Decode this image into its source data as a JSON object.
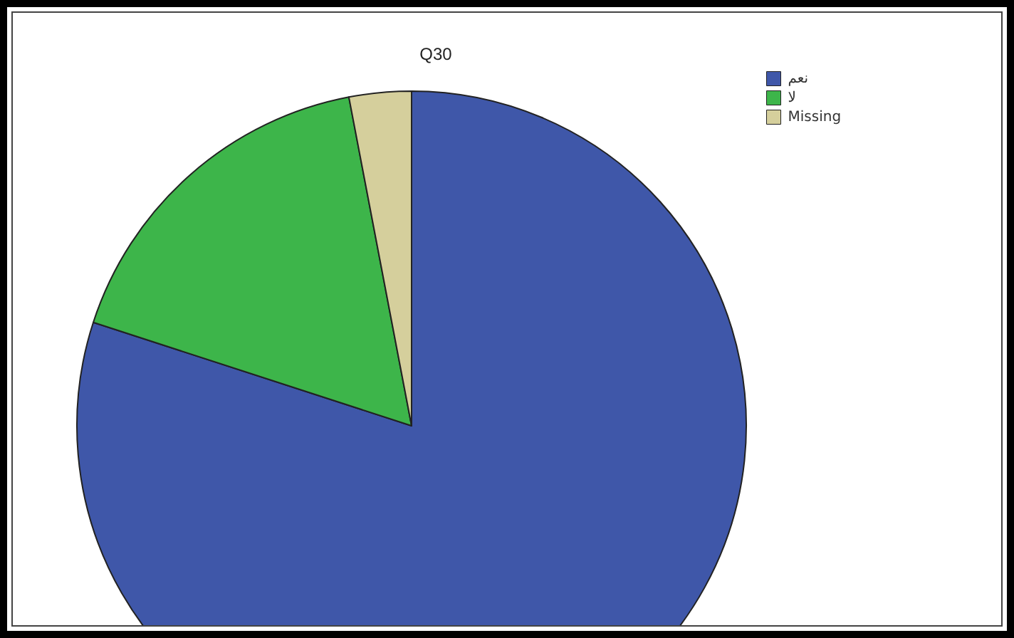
{
  "chart_data": {
    "type": "pie",
    "title": "Q30",
    "categories": [
      "نعم",
      "لا",
      "Missing"
    ],
    "values": [
      80,
      17,
      3
    ],
    "colors": [
      "#3f57a9",
      "#3db54a",
      "#d5cf9c"
    ],
    "legend": "top right"
  }
}
